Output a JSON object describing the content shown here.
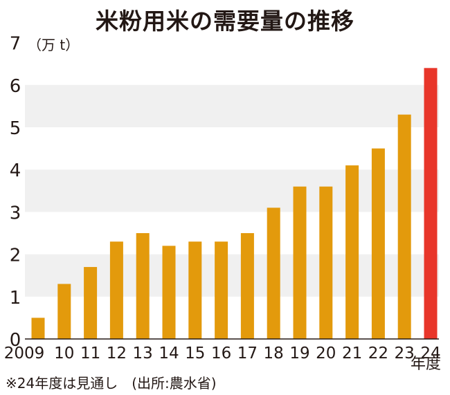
{
  "title": "米粉用米の需要量の推移",
  "note": "※24年度は見通し　(出所:農水省)",
  "colors": {
    "bar": "#e39a0c",
    "highlight": "#e8362a",
    "band": "#f0f0f0"
  },
  "chart_data": {
    "type": "bar",
    "title": "米粉用米の需要量の推移",
    "unit_label": "（万 t）",
    "xlabel_suffix": "年度",
    "categories": [
      "2009",
      "10",
      "11",
      "12",
      "13",
      "14",
      "15",
      "16",
      "17",
      "18",
      "19",
      "20",
      "21",
      "22",
      "23",
      "24"
    ],
    "values": [
      0.5,
      1.3,
      1.7,
      2.3,
      2.5,
      2.2,
      2.3,
      2.3,
      2.5,
      3.1,
      3.6,
      3.6,
      4.1,
      4.5,
      5.3,
      6.4
    ],
    "highlight_index": 15,
    "ylim": [
      0,
      7
    ],
    "yticks": [
      0,
      1,
      2,
      3,
      4,
      5,
      6,
      7
    ],
    "grid": "alternating horizontal bands",
    "legend": "none"
  }
}
